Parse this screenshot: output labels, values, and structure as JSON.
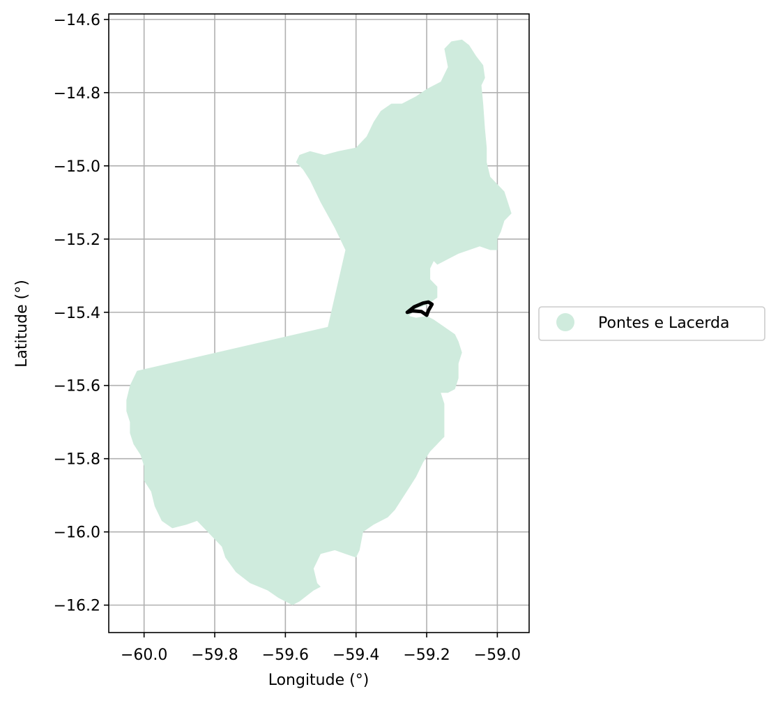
{
  "chart_data": {
    "type": "map",
    "xlabel": "Longitude (°)",
    "ylabel": "Latitude (°)",
    "xlim": [
      -60.1,
      -58.91
    ],
    "ylim": [
      -16.275,
      -14.585
    ],
    "grid": true,
    "xticks": [
      {
        "value": -60.0,
        "label": "−60.0"
      },
      {
        "value": -59.8,
        "label": "−59.8"
      },
      {
        "value": -59.6,
        "label": "−59.6"
      },
      {
        "value": -59.4,
        "label": "−59.4"
      },
      {
        "value": -59.2,
        "label": "−59.2"
      },
      {
        "value": -59.0,
        "label": "−59.0"
      }
    ],
    "yticks": [
      {
        "value": -14.6,
        "label": "−14.6"
      },
      {
        "value": -14.8,
        "label": "−14.8"
      },
      {
        "value": -15.0,
        "label": "−15.0"
      },
      {
        "value": -15.2,
        "label": "−15.2"
      },
      {
        "value": -15.4,
        "label": "−15.4"
      },
      {
        "value": -15.6,
        "label": "−15.6"
      },
      {
        "value": -15.8,
        "label": "−15.8"
      },
      {
        "value": -16.0,
        "label": "−16.0"
      },
      {
        "value": -16.2,
        "label": "−16.2"
      }
    ],
    "legend": {
      "placement": "outside-right",
      "entries": [
        {
          "label": "Pontes e Lacerda",
          "color": "#cfebdd"
        }
      ]
    },
    "region": {
      "name": "Pontes e Lacerda",
      "fill": "#cfebdd",
      "outline_lonlat": [
        [
          -59.1,
          -14.655
        ],
        [
          -59.08,
          -14.67
        ],
        [
          -59.06,
          -14.7
        ],
        [
          -59.04,
          -14.725
        ],
        [
          -59.035,
          -14.76
        ],
        [
          -59.045,
          -14.78
        ],
        [
          -59.04,
          -14.83
        ],
        [
          -59.035,
          -14.9
        ],
        [
          -59.03,
          -14.95
        ],
        [
          -59.03,
          -14.99
        ],
        [
          -59.02,
          -15.03
        ],
        [
          -59.0,
          -15.05
        ],
        [
          -58.98,
          -15.07
        ],
        [
          -58.97,
          -15.1
        ],
        [
          -58.96,
          -15.13
        ],
        [
          -58.98,
          -15.15
        ],
        [
          -58.99,
          -15.18
        ],
        [
          -59.0,
          -15.2
        ],
        [
          -59.0,
          -15.23
        ],
        [
          -59.02,
          -15.23
        ],
        [
          -59.05,
          -15.22
        ],
        [
          -59.08,
          -15.23
        ],
        [
          -59.11,
          -15.24
        ],
        [
          -59.13,
          -15.25
        ],
        [
          -59.15,
          -15.26
        ],
        [
          -59.17,
          -15.27
        ],
        [
          -59.18,
          -15.26
        ],
        [
          -59.19,
          -15.28
        ],
        [
          -59.19,
          -15.31
        ],
        [
          -59.17,
          -15.33
        ],
        [
          -59.17,
          -15.36
        ],
        [
          -59.2,
          -15.38
        ],
        [
          -59.23,
          -15.39
        ],
        [
          -59.25,
          -15.41
        ],
        [
          -59.23,
          -15.415
        ],
        [
          -59.2,
          -15.41
        ],
        [
          -59.18,
          -15.42
        ],
        [
          -59.15,
          -15.44
        ],
        [
          -59.12,
          -15.46
        ],
        [
          -59.11,
          -15.48
        ],
        [
          -59.1,
          -15.51
        ],
        [
          -59.11,
          -15.54
        ],
        [
          -59.11,
          -15.58
        ],
        [
          -59.12,
          -15.61
        ],
        [
          -59.14,
          -15.62
        ],
        [
          -59.16,
          -15.62
        ],
        [
          -59.15,
          -15.65
        ],
        [
          -59.15,
          -15.7
        ],
        [
          -59.15,
          -15.74
        ],
        [
          -59.17,
          -15.76
        ],
        [
          -59.19,
          -15.78
        ],
        [
          -59.21,
          -15.81
        ],
        [
          -59.23,
          -15.85
        ],
        [
          -59.25,
          -15.88
        ],
        [
          -59.27,
          -15.91
        ],
        [
          -59.29,
          -15.94
        ],
        [
          -59.31,
          -15.96
        ],
        [
          -59.35,
          -15.98
        ],
        [
          -59.38,
          -16.0
        ],
        [
          -59.39,
          -16.05
        ],
        [
          -59.4,
          -16.07
        ],
        [
          -59.43,
          -16.06
        ],
        [
          -59.46,
          -16.05
        ],
        [
          -59.5,
          -16.06
        ],
        [
          -59.52,
          -16.1
        ],
        [
          -59.51,
          -16.14
        ],
        [
          -59.5,
          -16.15
        ],
        [
          -59.52,
          -16.16
        ],
        [
          -59.56,
          -16.19
        ],
        [
          -59.58,
          -16.2
        ],
        [
          -59.62,
          -16.18
        ],
        [
          -59.65,
          -16.16
        ],
        [
          -59.7,
          -16.14
        ],
        [
          -59.74,
          -16.11
        ],
        [
          -59.77,
          -16.07
        ],
        [
          -59.78,
          -16.04
        ],
        [
          -59.8,
          -16.02
        ],
        [
          -59.83,
          -15.99
        ],
        [
          -59.85,
          -15.97
        ],
        [
          -59.88,
          -15.98
        ],
        [
          -59.92,
          -15.99
        ],
        [
          -59.95,
          -15.97
        ],
        [
          -59.97,
          -15.93
        ],
        [
          -59.98,
          -15.89
        ],
        [
          -60.0,
          -15.86
        ],
        [
          -60.0,
          -15.82
        ],
        [
          -60.01,
          -15.79
        ],
        [
          -60.03,
          -15.76
        ],
        [
          -60.04,
          -15.73
        ],
        [
          -60.04,
          -15.7
        ],
        [
          -60.05,
          -15.67
        ],
        [
          -60.05,
          -15.64
        ],
        [
          -60.04,
          -15.6
        ],
        [
          -60.02,
          -15.56
        ],
        [
          -59.48,
          -15.44
        ],
        [
          -59.43,
          -15.23
        ],
        [
          -59.46,
          -15.17
        ],
        [
          -59.5,
          -15.1
        ],
        [
          -59.53,
          -15.04
        ],
        [
          -59.55,
          -15.01
        ],
        [
          -59.57,
          -14.99
        ],
        [
          -59.56,
          -14.97
        ],
        [
          -59.53,
          -14.96
        ],
        [
          -59.49,
          -14.97
        ],
        [
          -59.45,
          -14.96
        ],
        [
          -59.4,
          -14.95
        ],
        [
          -59.37,
          -14.92
        ],
        [
          -59.35,
          -14.88
        ],
        [
          -59.33,
          -14.85
        ],
        [
          -59.3,
          -14.83
        ],
        [
          -59.27,
          -14.83
        ],
        [
          -59.23,
          -14.81
        ],
        [
          -59.2,
          -14.79
        ],
        [
          -59.16,
          -14.77
        ],
        [
          -59.14,
          -14.73
        ],
        [
          -59.15,
          -14.68
        ],
        [
          -59.13,
          -14.66
        ]
      ]
    },
    "overlay": {
      "color": "#000000",
      "outline_lonlat": [
        [
          -59.255,
          -15.4
        ],
        [
          -59.235,
          -15.385
        ],
        [
          -59.21,
          -15.375
        ],
        [
          -59.195,
          -15.372
        ],
        [
          -59.185,
          -15.378
        ],
        [
          -59.195,
          -15.395
        ],
        [
          -59.2,
          -15.408
        ],
        [
          -59.215,
          -15.398
        ],
        [
          -59.24,
          -15.396
        ],
        [
          -59.255,
          -15.4
        ]
      ]
    }
  }
}
